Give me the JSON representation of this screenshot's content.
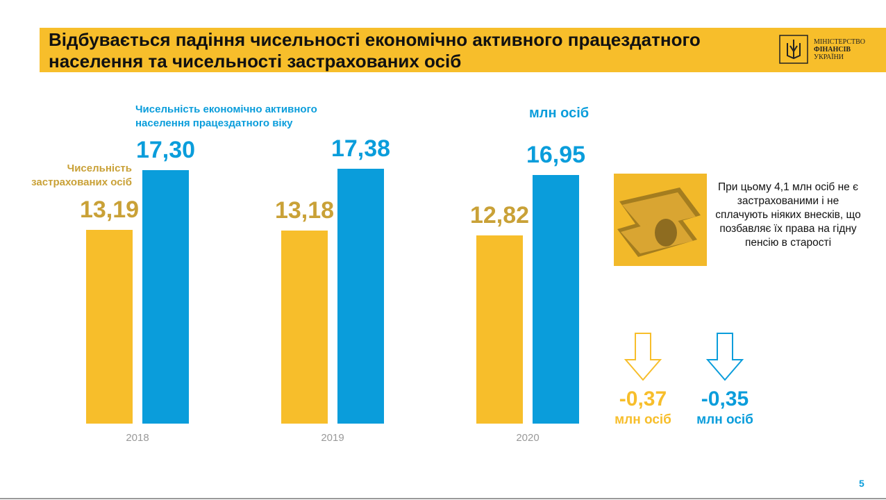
{
  "header": {
    "title": "Відбувається падіння чисельності економічно активного працездатного населення та чисельності застрахованих осіб",
    "logo": [
      "МІНІСТЕРСТВО",
      "ФІНАНСІВ",
      "УКРАЇНИ"
    ]
  },
  "chart_data": {
    "type": "bar",
    "unit": "млн осіб",
    "categories": [
      "2018",
      "2019",
      "2020"
    ],
    "series": [
      {
        "name": "Чисельність застрахованих осіб",
        "color": "#f7be2b",
        "label_color": "#c9a137",
        "values": [
          13.19,
          13.18,
          12.82
        ],
        "value_labels": [
          "13,19",
          "13,18",
          "12,82"
        ]
      },
      {
        "name": "Чисельність економічно активного населення працездатного віку",
        "color": "#0a9ddb",
        "label_color": "#0a9ddb",
        "values": [
          17.3,
          17.38,
          16.95
        ],
        "value_labels": [
          "17,30",
          "17,38",
          "16,95"
        ]
      }
    ]
  },
  "note": {
    "text": "При цьому 4,1 млн осіб не є застрахованими і не сплачують ніяких внесків, що позбавляє їх права на гідну пенсію в старості"
  },
  "changes": [
    {
      "label": "-0,37",
      "unit": "млн осіб",
      "color": "#f7be2b"
    },
    {
      "label": "-0,35",
      "unit": "млн осіб",
      "color": "#0a9ddb"
    }
  ],
  "page_number": "5"
}
